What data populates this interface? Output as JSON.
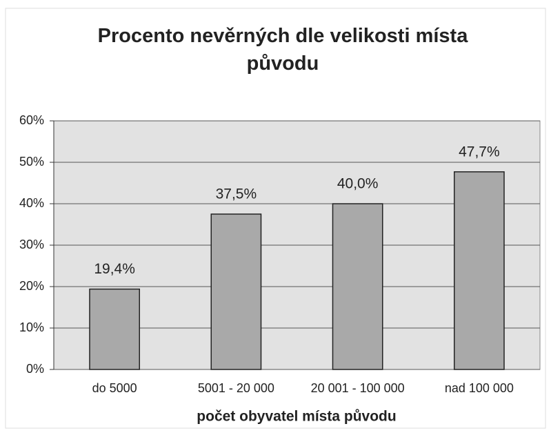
{
  "chart_data": {
    "type": "bar",
    "title": "Procento nevěrných dle velikosti místa původu",
    "x_label": "počet obyvatel místa původu",
    "categories": [
      "do 5000",
      "5001 - 20 000",
      "20 001 - 100 000",
      "nad 100 000"
    ],
    "values": [
      19.4,
      37.5,
      40.0,
      47.7
    ],
    "value_labels": [
      "19,4%",
      "37,5%",
      "40,0%",
      "47,7%"
    ],
    "color": "#a9a9a9",
    "ylim": [
      0,
      60
    ],
    "yticks": [
      {
        "value": 0,
        "label": "0%"
      },
      {
        "value": 10,
        "label": "10%"
      },
      {
        "value": 20,
        "label": "20%"
      },
      {
        "value": 30,
        "label": "30%"
      },
      {
        "value": 40,
        "label": "40%"
      },
      {
        "value": 50,
        "label": "50%"
      },
      {
        "value": 60,
        "label": "60%"
      }
    ],
    "grid": true
  }
}
